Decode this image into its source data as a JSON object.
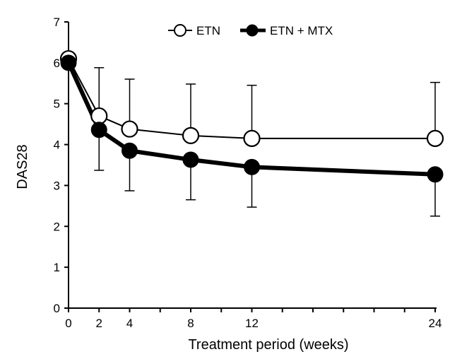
{
  "chart_data": {
    "type": "line",
    "title": "",
    "xlabel": "Treatment period (weeks)",
    "ylabel": "DAS28",
    "x": [
      0,
      2,
      4,
      8,
      12,
      24
    ],
    "xticks": [
      0,
      2,
      4,
      8,
      12,
      24
    ],
    "xlim": [
      0,
      24
    ],
    "yticks": [
      0,
      1,
      2,
      3,
      4,
      5,
      6,
      7
    ],
    "ylim": [
      0,
      7
    ],
    "grid": false,
    "legend_position": "top",
    "series": [
      {
        "name": "ETN",
        "marker": "open-circle",
        "color": "#000000",
        "values": [
          6.1,
          4.7,
          4.38,
          4.22,
          4.15,
          4.15
        ],
        "error_upper": [
          6.1,
          5.88,
          5.6,
          5.48,
          5.45,
          5.52
        ]
      },
      {
        "name": "ETN + MTX",
        "marker": "filled-circle",
        "color": "#000000",
        "values": [
          6.0,
          4.36,
          3.85,
          3.63,
          3.45,
          3.27
        ],
        "error_lower": [
          6.0,
          3.37,
          2.87,
          2.65,
          2.47,
          2.25
        ]
      }
    ]
  }
}
